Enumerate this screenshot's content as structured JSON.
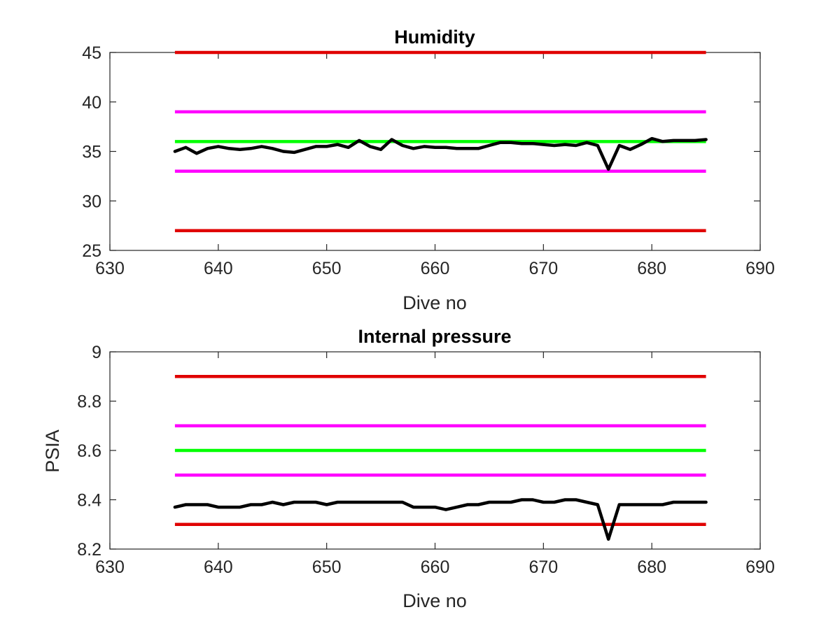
{
  "colors": {
    "series": "#000000",
    "target": "#00ff00",
    "warning": "#ff00ff",
    "limit": "#e00000",
    "axis": "#262626",
    "background": "#ffffff"
  },
  "chart_data": [
    {
      "type": "line",
      "title": "Humidity",
      "xlabel": "Dive no",
      "ylabel": "",
      "xlim": [
        630,
        690
      ],
      "ylim": [
        25,
        45
      ],
      "xticks": [
        "630",
        "640",
        "650",
        "660",
        "670",
        "680",
        "690"
      ],
      "yticks": [
        "25",
        "30",
        "35",
        "40",
        "45"
      ],
      "grid": false,
      "reference_lines": [
        {
          "role": "limit",
          "y": 45,
          "x": [
            636,
            685
          ]
        },
        {
          "role": "warning",
          "y": 39,
          "x": [
            636,
            685
          ]
        },
        {
          "role": "target",
          "y": 36,
          "x": [
            636,
            685
          ]
        },
        {
          "role": "warning",
          "y": 33,
          "x": [
            636,
            685
          ]
        },
        {
          "role": "limit",
          "y": 27,
          "x": [
            636,
            685
          ]
        }
      ],
      "series": [
        {
          "x": [
            636,
            637,
            638,
            639,
            640,
            641,
            642,
            643,
            644,
            645,
            646,
            647,
            648,
            649,
            650,
            651,
            652,
            653,
            654,
            655,
            656,
            657,
            658,
            659,
            660,
            661,
            662,
            663,
            664,
            665,
            666,
            667,
            668,
            669,
            670,
            671,
            672,
            673,
            674,
            675,
            676,
            677,
            678,
            679,
            680,
            681,
            682,
            683,
            684,
            685
          ],
          "values": [
            35.0,
            35.4,
            34.8,
            35.3,
            35.5,
            35.3,
            35.2,
            35.3,
            35.5,
            35.3,
            35.0,
            34.9,
            35.2,
            35.5,
            35.5,
            35.7,
            35.4,
            36.1,
            35.5,
            35.2,
            36.2,
            35.6,
            35.3,
            35.5,
            35.4,
            35.4,
            35.3,
            35.3,
            35.3,
            35.6,
            35.9,
            35.9,
            35.8,
            35.8,
            35.7,
            35.6,
            35.7,
            35.6,
            35.9,
            35.6,
            33.2,
            35.6,
            35.2,
            35.7,
            36.3,
            36.0,
            36.1,
            36.1,
            36.1,
            36.2
          ]
        }
      ]
    },
    {
      "type": "line",
      "title": "Internal pressure",
      "xlabel": "Dive no",
      "ylabel": "PSIA",
      "xlim": [
        630,
        690
      ],
      "ylim": [
        8.2,
        9.0
      ],
      "xticks": [
        "630",
        "640",
        "650",
        "660",
        "670",
        "680",
        "690"
      ],
      "yticks": [
        "8.2",
        "8.4",
        "8.6",
        "8.8",
        "9"
      ],
      "grid": false,
      "reference_lines": [
        {
          "role": "limit",
          "y": 8.9,
          "x": [
            636,
            685
          ]
        },
        {
          "role": "warning",
          "y": 8.7,
          "x": [
            636,
            685
          ]
        },
        {
          "role": "target",
          "y": 8.6,
          "x": [
            636,
            685
          ]
        },
        {
          "role": "warning",
          "y": 8.5,
          "x": [
            636,
            685
          ]
        },
        {
          "role": "limit",
          "y": 8.3,
          "x": [
            636,
            685
          ]
        }
      ],
      "series": [
        {
          "x": [
            636,
            637,
            638,
            639,
            640,
            641,
            642,
            643,
            644,
            645,
            646,
            647,
            648,
            649,
            650,
            651,
            652,
            653,
            654,
            655,
            656,
            657,
            658,
            659,
            660,
            661,
            662,
            663,
            664,
            665,
            666,
            667,
            668,
            669,
            670,
            671,
            672,
            673,
            674,
            675,
            676,
            677,
            678,
            679,
            680,
            681,
            682,
            683,
            684,
            685
          ],
          "values": [
            8.37,
            8.38,
            8.38,
            8.38,
            8.37,
            8.37,
            8.37,
            8.38,
            8.38,
            8.39,
            8.38,
            8.39,
            8.39,
            8.39,
            8.38,
            8.39,
            8.39,
            8.39,
            8.39,
            8.39,
            8.39,
            8.39,
            8.37,
            8.37,
            8.37,
            8.36,
            8.37,
            8.38,
            8.38,
            8.39,
            8.39,
            8.39,
            8.4,
            8.4,
            8.39,
            8.39,
            8.4,
            8.4,
            8.39,
            8.38,
            8.24,
            8.38,
            8.38,
            8.38,
            8.38,
            8.38,
            8.39,
            8.39,
            8.39,
            8.39
          ]
        }
      ]
    }
  ]
}
